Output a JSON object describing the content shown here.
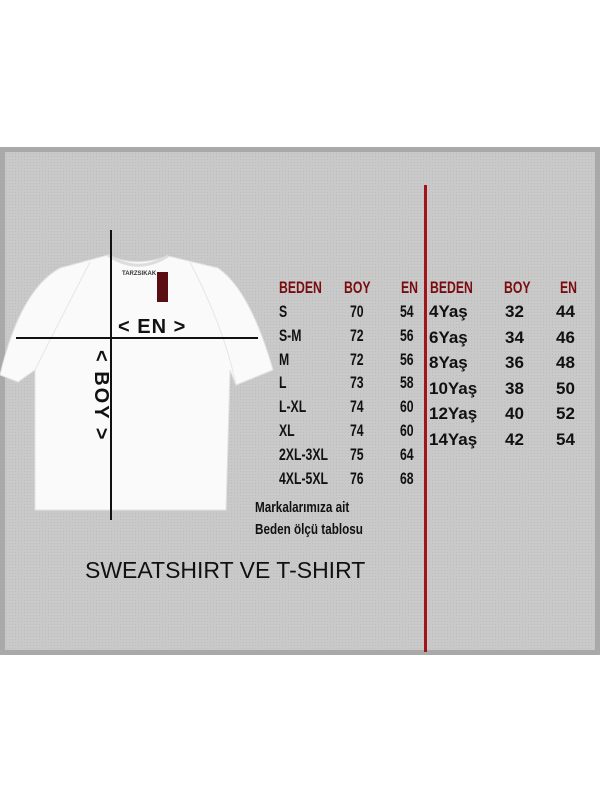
{
  "shirt": {
    "brand_label": "TARZSIKAK",
    "tag_text": "TARZSIKAK",
    "en_label": "< EN >",
    "boy_label": "< BOY >"
  },
  "adult_table": {
    "headers": [
      "BEDEN",
      "BOY",
      "EN"
    ],
    "rows": [
      [
        "S",
        "70",
        "54"
      ],
      [
        "S-M",
        "72",
        "56"
      ],
      [
        "M",
        "72",
        "56"
      ],
      [
        "L",
        "73",
        "58"
      ],
      [
        "L-XL",
        "74",
        "60"
      ],
      [
        "XL",
        "74",
        "60"
      ],
      [
        "2XL-3XL",
        "75",
        "64"
      ],
      [
        "4XL-5XL",
        "76",
        "68"
      ]
    ]
  },
  "kids_table": {
    "headers": [
      "BEDEN",
      "BOY",
      "EN"
    ],
    "rows": [
      [
        "4Yaş",
        "32",
        "44"
      ],
      [
        "6Yaş",
        "34",
        "46"
      ],
      [
        "8Yaş",
        "36",
        "48"
      ],
      [
        "10Yaş",
        "38",
        "50"
      ],
      [
        "12Yaş",
        "40",
        "52"
      ],
      [
        "14Yaş",
        "42",
        "54"
      ]
    ]
  },
  "note": {
    "line1": "Markalarımıza ait",
    "line2": "Beden ölçü tablosu"
  },
  "title": "SWEATSHIRT VE T-SHIRT",
  "colors": {
    "header": "#7a0c10",
    "divider": "#a0141a",
    "panel": "#c9c9c9"
  }
}
